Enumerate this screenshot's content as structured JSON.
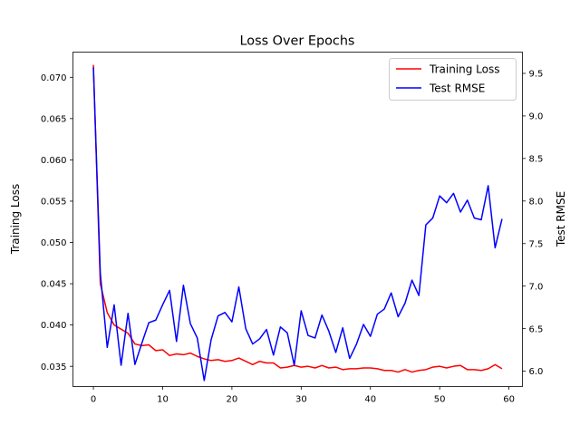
{
  "chart_data": {
    "type": "line",
    "title": "Loss Over Epochs",
    "xlabel": "",
    "ylabel": "Training Loss",
    "y2label": "Test RMSE",
    "xlim": [
      -2.95,
      61.95
    ],
    "ylim": [
      0.03255,
      0.07305
    ],
    "y2lim": [
      5.82,
      9.75
    ],
    "xticks": [
      0,
      10,
      20,
      30,
      40,
      50,
      60
    ],
    "yticks": [
      0.035,
      0.04,
      0.045,
      0.05,
      0.055,
      0.06,
      0.065,
      0.07
    ],
    "ytick_labels": [
      "0.035",
      "0.040",
      "0.045",
      "0.050",
      "0.055",
      "0.060",
      "0.065",
      "0.070"
    ],
    "y2ticks": [
      6.0,
      6.5,
      7.0,
      7.5,
      8.0,
      8.5,
      9.0,
      9.5
    ],
    "y2tick_labels": [
      "6.0",
      "6.5",
      "7.0",
      "7.5",
      "8.0",
      "8.5",
      "9.0",
      "9.5"
    ],
    "legend_position": "top-right",
    "x": [
      0,
      1,
      2,
      3,
      4,
      5,
      6,
      7,
      8,
      9,
      10,
      11,
      12,
      13,
      14,
      15,
      16,
      17,
      18,
      19,
      20,
      21,
      22,
      23,
      24,
      25,
      26,
      27,
      28,
      29,
      30,
      31,
      32,
      33,
      34,
      35,
      36,
      37,
      38,
      39,
      40,
      41,
      42,
      43,
      44,
      45,
      46,
      47,
      48,
      49,
      50,
      51,
      52,
      53,
      54,
      55,
      56,
      57,
      58,
      59
    ],
    "series": [
      {
        "name": "Training Loss",
        "axis": "left",
        "color": "#ff0000",
        "values": [
          0.0715,
          0.045,
          0.0415,
          0.04,
          0.0395,
          0.039,
          0.0377,
          0.0375,
          0.0376,
          0.0369,
          0.037,
          0.0363,
          0.0365,
          0.0364,
          0.0366,
          0.0362,
          0.0359,
          0.0357,
          0.0358,
          0.0356,
          0.0357,
          0.036,
          0.0356,
          0.0352,
          0.0356,
          0.0354,
          0.0354,
          0.0348,
          0.0349,
          0.0351,
          0.0349,
          0.035,
          0.0348,
          0.0351,
          0.0348,
          0.0349,
          0.0346,
          0.0347,
          0.0347,
          0.0348,
          0.0348,
          0.0347,
          0.0345,
          0.0345,
          0.0343,
          0.0346,
          0.0343,
          0.0345,
          0.0346,
          0.0349,
          0.035,
          0.0348,
          0.035,
          0.0351,
          0.0346,
          0.0346,
          0.0345,
          0.0347,
          0.0352,
          0.0347
        ]
      },
      {
        "name": "Test RMSE",
        "axis": "right",
        "color": "#0000ff",
        "values": [
          9.57,
          7.15,
          6.28,
          6.78,
          6.07,
          6.68,
          6.08,
          6.33,
          6.57,
          6.6,
          6.78,
          6.95,
          6.35,
          7.01,
          6.56,
          6.39,
          5.89,
          6.37,
          6.65,
          6.69,
          6.58,
          6.99,
          6.5,
          6.32,
          6.38,
          6.49,
          6.19,
          6.52,
          6.45,
          6.07,
          6.71,
          6.42,
          6.39,
          6.66,
          6.47,
          6.22,
          6.51,
          6.15,
          6.32,
          6.55,
          6.41,
          6.67,
          6.73,
          6.92,
          6.64,
          6.8,
          7.07,
          6.89,
          7.72,
          7.8,
          8.06,
          7.98,
          8.09,
          7.87,
          8.01,
          7.8,
          7.78,
          8.18,
          7.45,
          7.79
        ]
      }
    ]
  }
}
